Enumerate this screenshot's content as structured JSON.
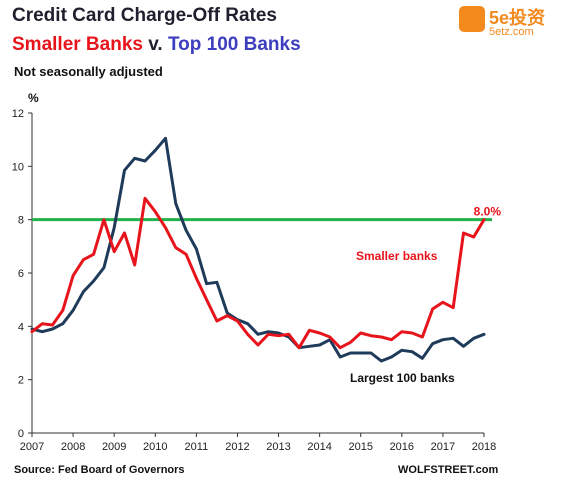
{
  "header": {
    "title": "Credit Card Charge-Off Rates",
    "subtitle_part1": "Smaller Banks",
    "subtitle_part2": " v. ",
    "subtitle_part3": "Top 100 Banks",
    "note": "Not seasonally adjusted"
  },
  "footer": {
    "source": "Source: Fed Board of Governors",
    "credit": "WOLFSTREET.com"
  },
  "logo": {
    "main": "5e投资",
    "sub": "5etz.com"
  },
  "colors": {
    "smaller_banks": "#e8141c",
    "largest_banks": "#1f3b5a",
    "reference_line": "#21b24b",
    "title_dark": "#1f1f2e",
    "subtitle_red": "#e8141c",
    "subtitle_blue": "#3d3dbf",
    "logo_orange": "#f28a1e"
  },
  "chart_data": {
    "type": "line",
    "ylabel": "%",
    "ylim": [
      0,
      12
    ],
    "xlim": [
      2007,
      2018
    ],
    "yticks": [
      0,
      2,
      4,
      6,
      8,
      10,
      12
    ],
    "xticks": [
      2007,
      2008,
      2009,
      2010,
      2011,
      2012,
      2013,
      2014,
      2015,
      2016,
      2017,
      2018
    ],
    "grid": false,
    "reference_line": {
      "y": 8.0,
      "label": "8.0%"
    },
    "annotations": [
      {
        "text": "Smaller banks",
        "series": "smaller"
      },
      {
        "text": "Largest 100 banks",
        "series": "largest"
      }
    ],
    "series": [
      {
        "name": "Smaller banks",
        "key": "smaller",
        "x": [
          2007.0,
          2007.25,
          2007.5,
          2007.75,
          2008.0,
          2008.25,
          2008.5,
          2008.75,
          2009.0,
          2009.25,
          2009.5,
          2009.75,
          2010.0,
          2010.25,
          2010.5,
          2010.75,
          2011.0,
          2011.25,
          2011.5,
          2011.75,
          2012.0,
          2012.25,
          2012.5,
          2012.75,
          2013.0,
          2013.25,
          2013.5,
          2013.75,
          2014.0,
          2014.25,
          2014.5,
          2014.75,
          2015.0,
          2015.25,
          2015.5,
          2015.75,
          2016.0,
          2016.25,
          2016.5,
          2016.75,
          2017.0,
          2017.25,
          2017.5,
          2017.75,
          2018.0
        ],
        "y": [
          3.8,
          4.1,
          4.05,
          4.6,
          5.9,
          6.5,
          6.7,
          8.0,
          6.8,
          7.5,
          6.3,
          8.8,
          8.3,
          7.7,
          6.95,
          6.7,
          5.8,
          5.0,
          4.2,
          4.4,
          4.2,
          3.7,
          3.3,
          3.7,
          3.65,
          3.7,
          3.2,
          3.85,
          3.75,
          3.6,
          3.2,
          3.4,
          3.75,
          3.65,
          3.6,
          3.5,
          3.8,
          3.75,
          3.6,
          4.65,
          4.9,
          4.7,
          7.5,
          7.35,
          8.0
        ]
      },
      {
        "name": "Largest 100 banks",
        "key": "largest",
        "x": [
          2007.0,
          2007.25,
          2007.5,
          2007.75,
          2008.0,
          2008.25,
          2008.5,
          2008.75,
          2009.0,
          2009.25,
          2009.5,
          2009.75,
          2010.0,
          2010.25,
          2010.5,
          2010.75,
          2011.0,
          2011.25,
          2011.5,
          2011.75,
          2012.0,
          2012.25,
          2012.5,
          2012.75,
          2013.0,
          2013.25,
          2013.5,
          2013.75,
          2014.0,
          2014.25,
          2014.5,
          2014.75,
          2015.0,
          2015.25,
          2015.5,
          2015.75,
          2016.0,
          2016.25,
          2016.5,
          2016.75,
          2017.0,
          2017.25,
          2017.5,
          2017.75,
          2018.0
        ],
        "y": [
          3.9,
          3.8,
          3.9,
          4.1,
          4.6,
          5.3,
          5.7,
          6.2,
          7.7,
          9.85,
          10.3,
          10.2,
          10.6,
          11.05,
          8.6,
          7.6,
          6.9,
          5.6,
          5.65,
          4.5,
          4.25,
          4.1,
          3.7,
          3.8,
          3.75,
          3.6,
          3.2,
          3.25,
          3.3,
          3.5,
          2.85,
          3.0,
          3.0,
          3.0,
          2.7,
          2.85,
          3.1,
          3.05,
          2.8,
          3.35,
          3.5,
          3.55,
          3.25,
          3.55,
          3.7
        ]
      }
    ]
  }
}
